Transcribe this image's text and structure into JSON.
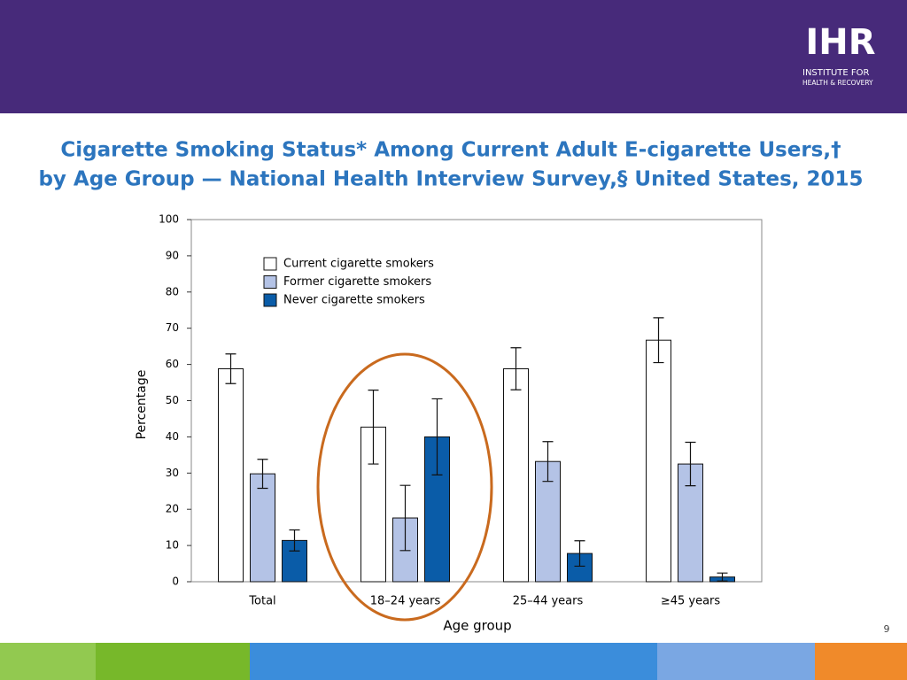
{
  "header": {
    "logo": "IHR",
    "org_line1": "INSTITUTE FOR",
    "org_line2": "HEALTH & RECOVERY"
  },
  "page_number": "9",
  "chart_data": {
    "type": "bar",
    "title": [
      "Cigarette Smoking Status* Among Current Adult E-cigarette Users,†",
      "by Age Group — National Health Interview Survey,§ United States, 2015"
    ],
    "x_label": "Age group",
    "y_label": "Percentage",
    "categories": [
      "Total",
      "18–24 years",
      "25–44 years",
      "≥45 years"
    ],
    "series": [
      {
        "name": "Current cigarette smokers",
        "color": "#ffffff",
        "values": [
          58.8,
          42.7,
          58.8,
          66.7
        ],
        "errors": [
          4.1,
          10.2,
          5.8,
          6.2
        ]
      },
      {
        "name": "Former cigarette smokers",
        "color": "#b4c3e6",
        "values": [
          29.8,
          17.6,
          33.2,
          32.5
        ],
        "errors": [
          4.0,
          9.0,
          5.5,
          6.0
        ]
      },
      {
        "name": "Never cigarette smokers",
        "color": "#0a5ca8",
        "values": [
          11.4,
          40.0,
          7.8,
          1.3
        ],
        "errors": [
          2.9,
          10.5,
          3.5,
          1.1
        ]
      }
    ],
    "ylim": [
      0,
      100
    ],
    "yticks": [
      0,
      10,
      20,
      30,
      40,
      50,
      60,
      70,
      80,
      90,
      100
    ],
    "legend": "upper left"
  }
}
